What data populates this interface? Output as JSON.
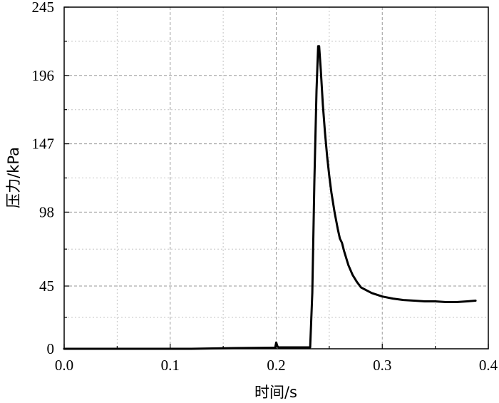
{
  "chart_data": {
    "type": "line",
    "xlabel": "时间/s",
    "ylabel": "压力/kPa",
    "xlim": [
      0.0,
      0.4
    ],
    "ylim": [
      0,
      245
    ],
    "xticks": [
      "0.0",
      "0.1",
      "0.2",
      "0.3",
      "0.4"
    ],
    "yticks": [
      "0",
      "45",
      "98",
      "147",
      "196",
      "245"
    ],
    "ytick_values": [
      0,
      45,
      98,
      147,
      196,
      245
    ],
    "grid": true,
    "series": [
      {
        "x": [
          0.0,
          0.12,
          0.16,
          0.199,
          0.2,
          0.201,
          0.202,
          0.21,
          0.22,
          0.232,
          0.234,
          0.236,
          0.238,
          0.2395,
          0.2405,
          0.242,
          0.244,
          0.246,
          0.248,
          0.25,
          0.252,
          0.255,
          0.258,
          0.26,
          0.262,
          0.264,
          0.268,
          0.272,
          0.276,
          0.28,
          0.29,
          0.3,
          0.31,
          0.32,
          0.33,
          0.34,
          0.35,
          0.36,
          0.37,
          0.38,
          0.388
        ],
        "y": [
          0,
          0,
          0.5,
          0.8,
          4.5,
          2.0,
          1.0,
          1.0,
          1.0,
          1.0,
          40,
          120,
          185,
          217,
          217,
          200,
          175,
          155,
          138,
          124,
          112,
          98,
          86,
          79,
          76,
          70,
          60,
          53,
          48,
          44,
          40,
          37.5,
          36,
          35,
          34.5,
          34,
          34,
          33.5,
          33.5,
          34,
          34.5
        ]
      }
    ]
  }
}
